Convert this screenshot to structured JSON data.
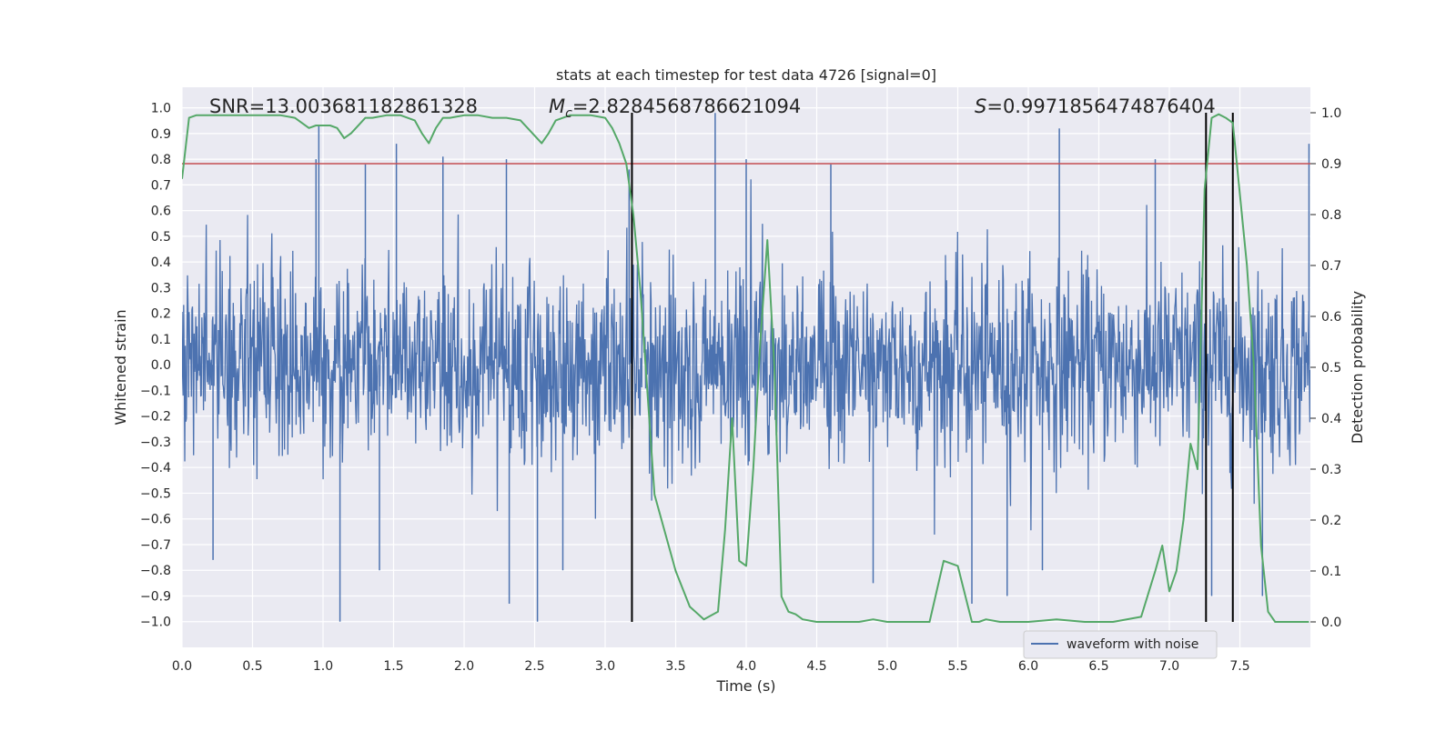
{
  "chart_data": {
    "type": "line",
    "title": "stats at each timestep for test data 4726 [signal=0]",
    "xlabel": "Time (s)",
    "ylabel_left": "Whitened strain",
    "ylabel_right": "Detection probability",
    "xlim": [
      0.0,
      8.0
    ],
    "ylim_left": [
      -1.1,
      1.08
    ],
    "ylim_right": [
      -0.05,
      1.05
    ],
    "x_ticks": [
      "0.0",
      "0.5",
      "1.0",
      "1.5",
      "2.0",
      "2.5",
      "3.0",
      "3.5",
      "4.0",
      "4.5",
      "5.0",
      "5.5",
      "6.0",
      "6.5",
      "7.0",
      "7.5"
    ],
    "y_ticks_left": [
      "−1.0",
      "−0.9",
      "−0.8",
      "−0.7",
      "−0.6",
      "−0.5",
      "−0.4",
      "−0.3",
      "−0.2",
      "−0.1",
      "0.0",
      "0.1",
      "0.2",
      "0.3",
      "0.4",
      "0.5",
      "0.6",
      "0.7",
      "0.8",
      "0.9",
      "1.0"
    ],
    "y_ticks_right": [
      "0.0",
      "0.1",
      "0.2",
      "0.3",
      "0.4",
      "0.5",
      "0.6",
      "0.7",
      "0.8",
      "0.9",
      "1.0"
    ],
    "grid": true,
    "legend": {
      "placement": "lower-right",
      "entries": [
        "waveform with noise"
      ]
    },
    "annotations": {
      "snr": "SNR=13.003681182861328",
      "mc_symbol": "M",
      "mc_subscript": "c",
      "mc_value": "=2.8284568786621094",
      "s_symbol": "S",
      "s_value": "=0.9971856474876404"
    },
    "threshold": {
      "axis": "right",
      "value": 0.9
    },
    "vertical_markers": [
      3.19,
      7.26,
      7.45
    ],
    "series": [
      {
        "name": "waveform with noise",
        "axis": "left",
        "color": "#4c72b0",
        "kind": "noise",
        "typical_amplitude": 0.38,
        "max_abs": 0.99,
        "samples": 2048,
        "spikes": [
          {
            "x": 0.97,
            "y": 0.93
          },
          {
            "x": 0.95,
            "y": 0.8
          },
          {
            "x": 1.12,
            "y": -1.0
          },
          {
            "x": 1.3,
            "y": 0.78
          },
          {
            "x": 1.52,
            "y": 0.86
          },
          {
            "x": 1.85,
            "y": 0.81
          },
          {
            "x": 2.3,
            "y": 0.8
          },
          {
            "x": 2.32,
            "y": -0.93
          },
          {
            "x": 2.52,
            "y": -1.0
          },
          {
            "x": 3.17,
            "y": 0.76
          },
          {
            "x": 3.78,
            "y": 0.98
          },
          {
            "x": 4.0,
            "y": 0.8
          },
          {
            "x": 4.9,
            "y": -0.85
          },
          {
            "x": 5.6,
            "y": -0.93
          },
          {
            "x": 5.85,
            "y": -0.9
          },
          {
            "x": 6.22,
            "y": 0.92
          },
          {
            "x": 6.9,
            "y": 0.8
          },
          {
            "x": 7.3,
            "y": -0.9
          },
          {
            "x": 7.66,
            "y": -0.9
          },
          {
            "x": 7.99,
            "y": 0.86
          },
          {
            "x": 0.22,
            "y": -0.76
          },
          {
            "x": 1.4,
            "y": -0.8
          },
          {
            "x": 2.7,
            "y": -0.8
          },
          {
            "x": 4.6,
            "y": 0.78
          },
          {
            "x": 6.1,
            "y": -0.8
          }
        ]
      },
      {
        "name": "detection probability",
        "axis": "right",
        "color": "#55a868",
        "x": [
          0.0,
          0.05,
          0.1,
          0.2,
          0.3,
          0.5,
          0.7,
          0.8,
          0.9,
          0.95,
          1.05,
          1.1,
          1.15,
          1.2,
          1.3,
          1.35,
          1.45,
          1.55,
          1.65,
          1.7,
          1.75,
          1.8,
          1.85,
          1.9,
          2.0,
          2.1,
          2.2,
          2.3,
          2.4,
          2.5,
          2.55,
          2.6,
          2.65,
          2.75,
          2.9,
          3.0,
          3.05,
          3.1,
          3.15,
          3.2,
          3.25,
          3.3,
          3.35,
          3.4,
          3.45,
          3.5,
          3.6,
          3.7,
          3.8,
          3.85,
          3.9,
          3.95,
          4.0,
          4.05,
          4.1,
          4.15,
          4.2,
          4.25,
          4.3,
          4.35,
          4.4,
          4.5,
          4.6,
          4.7,
          4.8,
          4.9,
          5.0,
          5.1,
          5.2,
          5.3,
          5.4,
          5.5,
          5.6,
          5.65,
          5.7,
          5.8,
          5.9,
          6.0,
          6.2,
          6.4,
          6.6,
          6.8,
          6.9,
          6.95,
          7.0,
          7.05,
          7.1,
          7.15,
          7.2,
          7.25,
          7.3,
          7.35,
          7.4,
          7.45,
          7.5,
          7.55,
          7.6,
          7.65,
          7.7,
          7.75,
          7.8,
          7.9,
          7.99
        ],
        "values": [
          0.87,
          0.99,
          0.995,
          0.995,
          0.995,
          0.995,
          0.995,
          0.99,
          0.97,
          0.975,
          0.975,
          0.97,
          0.95,
          0.96,
          0.99,
          0.99,
          0.995,
          0.995,
          0.985,
          0.96,
          0.94,
          0.97,
          0.99,
          0.99,
          0.995,
          0.995,
          0.99,
          0.99,
          0.985,
          0.955,
          0.94,
          0.96,
          0.985,
          0.995,
          0.995,
          0.99,
          0.97,
          0.94,
          0.9,
          0.8,
          0.65,
          0.45,
          0.25,
          0.2,
          0.15,
          0.1,
          0.03,
          0.005,
          0.02,
          0.18,
          0.4,
          0.12,
          0.11,
          0.3,
          0.55,
          0.75,
          0.5,
          0.05,
          0.02,
          0.015,
          0.005,
          0.0,
          0.0,
          0.0,
          0.0,
          0.005,
          0.0,
          0.0,
          0.0,
          0.0,
          0.12,
          0.11,
          0.0,
          0.0,
          0.005,
          0.0,
          0.0,
          0.0,
          0.005,
          0.0,
          0.0,
          0.01,
          0.1,
          0.15,
          0.06,
          0.1,
          0.2,
          0.35,
          0.3,
          0.85,
          0.99,
          0.997,
          0.99,
          0.98,
          0.84,
          0.7,
          0.5,
          0.15,
          0.02,
          0.0,
          0.0,
          0.0,
          0.0
        ]
      }
    ]
  }
}
